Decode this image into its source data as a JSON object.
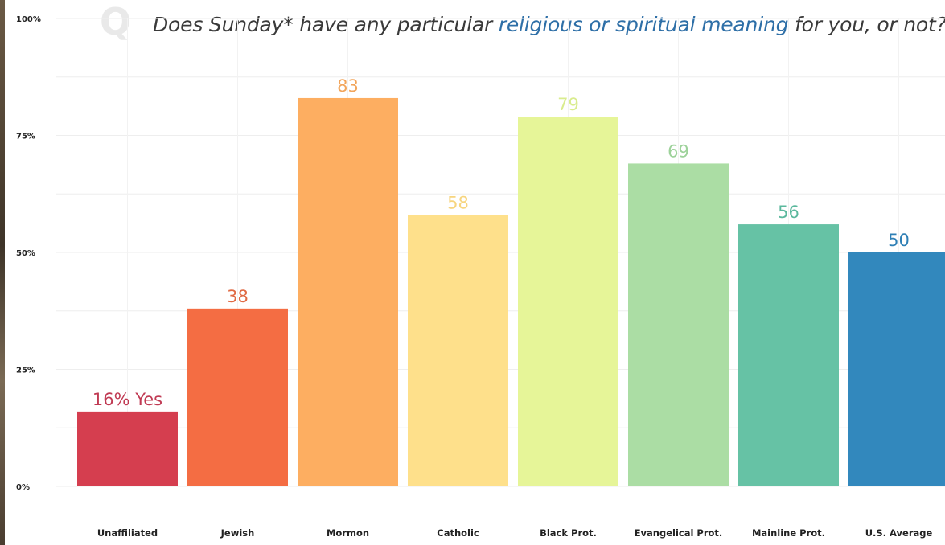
{
  "question": {
    "icon": "Q",
    "prefix": "Does Sunday* have any particular ",
    "highlight": "religious or spiritual meaning",
    "suffix": " for you, or not?",
    "highlight_color": "#2e6fa7"
  },
  "chart_data": {
    "type": "bar",
    "title": "Does Sunday* have any particular religious or spiritual meaning for you, or not?",
    "categories": [
      "Unaffiliated",
      "Jewish",
      "Mormon",
      "Catholic",
      "Black Prot.",
      "Evangelical Prot.",
      "Mainline Prot.",
      "U.S. Average"
    ],
    "values": [
      16,
      38,
      83,
      58,
      79,
      69,
      56,
      50
    ],
    "value_labels": [
      "16% Yes",
      "38",
      "83",
      "58",
      "79",
      "69",
      "56",
      "50"
    ],
    "colors": [
      "#d53e4f",
      "#f46d43",
      "#fdae61",
      "#fee08b",
      "#e6f598",
      "#abdda4",
      "#66c2a5",
      "#3288bd"
    ],
    "label_colors": [
      "#c03a53",
      "#e06a44",
      "#f2a55b",
      "#f7d57e",
      "#d9ec8e",
      "#9dd29a",
      "#5bb89d",
      "#2e7fb5"
    ],
    "yticks": [
      {
        "value": 0,
        "label": "0%"
      },
      {
        "value": 25,
        "label": "25%"
      },
      {
        "value": 50,
        "label": "50%"
      },
      {
        "value": 75,
        "label": "75%"
      },
      {
        "value": 100,
        "label": "100%"
      }
    ],
    "ylim": [
      0,
      100
    ],
    "grid": true,
    "xlabel": "",
    "ylabel": ""
  }
}
